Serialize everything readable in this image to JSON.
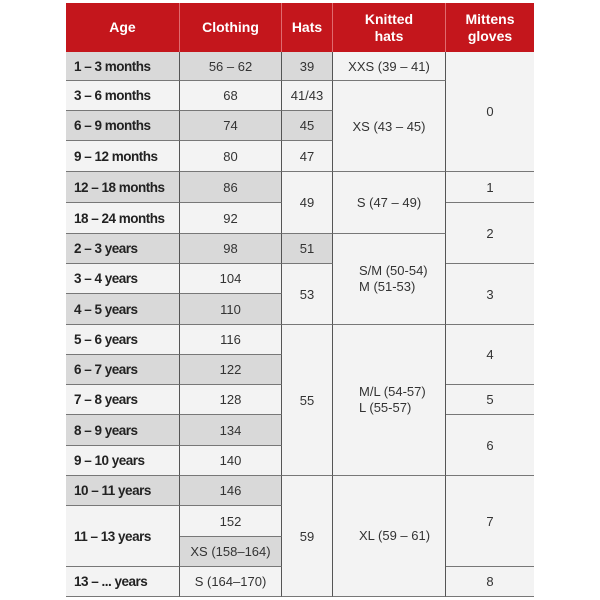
{
  "header": {
    "age": "Age",
    "clothing": "Clothing",
    "hats": "Hats",
    "knitted": "Knitted\nhats",
    "mittens": "Mittens\ngloves"
  },
  "ages": [
    "1 – 3 months",
    "3 – 6 months",
    "6 – 9 months",
    "9 – 12 months",
    "12 – 18 months",
    "18 – 24 months",
    "2 – 3 years",
    "3 – 4 years",
    "4 – 5 years",
    "5 – 6 years",
    "6 – 7 years",
    "7 – 8 years",
    "8 – 9 years",
    "9 – 10 years",
    "10 – 11 years",
    "11 – 13 years",
    "13 – ... years"
  ],
  "clothing": [
    "56 – 62",
    "68",
    "74",
    "80",
    "86",
    "92",
    "98",
    "104",
    "110",
    "116",
    "122",
    "128",
    "134",
    "140",
    "146",
    "152",
    "XS (158–164)",
    "S (164–170)"
  ],
  "hats": [
    "39",
    "41/43",
    "45",
    "47",
    "49",
    "51",
    "53",
    "55",
    "59"
  ],
  "knitted": [
    "XXS (39 – 41)",
    "XS (43 – 45)",
    "S (47 – 49)",
    "S/M (50-54)\nM (51-53)",
    "M/L (54-57)\nL (55-57)",
    "XL (59 – 61)"
  ],
  "mittens": [
    "0",
    "1",
    "2",
    "3",
    "4",
    "5",
    "6",
    "7",
    "8"
  ],
  "colors": {
    "header": "#c4161c",
    "shaded": "#d9d9d9",
    "cell": "#f3f3f3"
  }
}
